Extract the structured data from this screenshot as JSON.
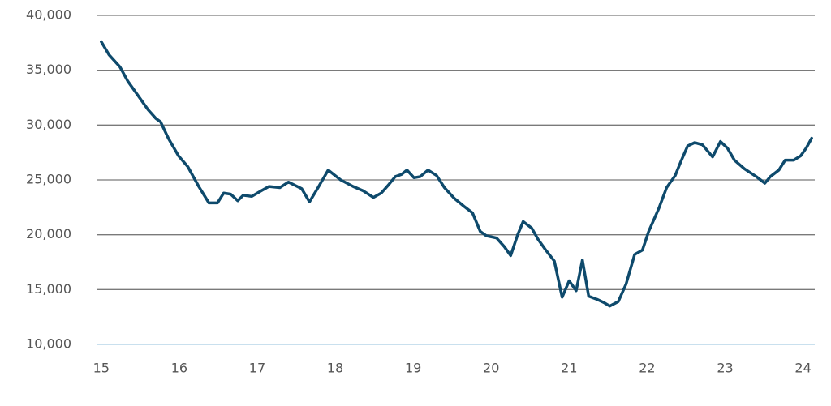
{
  "chart_data": {
    "type": "line",
    "x": [
      15.0,
      15.1,
      15.24,
      15.34,
      15.47,
      15.6,
      15.7,
      15.76,
      15.86,
      15.99,
      16.11,
      16.25,
      16.38,
      16.49,
      16.57,
      16.66,
      16.75,
      16.82,
      16.93,
      17.05,
      17.15,
      17.29,
      17.4,
      17.57,
      17.67,
      17.78,
      17.91,
      18.07,
      18.23,
      18.36,
      18.49,
      18.59,
      18.69,
      18.77,
      18.85,
      18.92,
      19.01,
      19.09,
      19.19,
      19.3,
      19.4,
      19.53,
      19.65,
      19.76,
      19.86,
      19.94,
      20.07,
      20.17,
      20.25,
      20.34,
      20.41,
      20.52,
      20.6,
      20.69,
      20.81,
      20.91,
      21.0,
      21.09,
      21.17,
      21.25,
      21.36,
      21.45,
      21.52,
      21.63,
      21.73,
      21.84,
      21.94,
      22.02,
      22.15,
      22.25,
      22.36,
      22.44,
      22.52,
      22.61,
      22.71,
      22.84,
      22.94,
      23.03,
      23.12,
      23.25,
      23.4,
      23.51,
      23.58,
      23.69,
      23.77,
      23.88,
      23.97,
      24.04,
      24.11
    ],
    "series": [
      {
        "color": "#0e4a6c",
        "values": [
          37600,
          36400,
          35300,
          34000,
          32700,
          31400,
          30600,
          30300,
          28800,
          27200,
          26200,
          24400,
          22900,
          22900,
          23800,
          23700,
          23100,
          23600,
          23500,
          24000,
          24400,
          24300,
          24800,
          24200,
          23000,
          24300,
          25900,
          25000,
          24400,
          24000,
          23400,
          23800,
          24600,
          25300,
          25500,
          25900,
          25200,
          25300,
          25900,
          25400,
          24300,
          23300,
          22600,
          22000,
          20300,
          19900,
          19700,
          18900,
          18100,
          20000,
          21200,
          20600,
          19600,
          18700,
          17600,
          14300,
          15800,
          14900,
          17700,
          14400,
          14100,
          13800,
          13500,
          13900,
          15500,
          18200,
          18600,
          20300,
          22400,
          24300,
          25400,
          26800,
          28100,
          28400,
          28200,
          27100,
          28500,
          27900,
          26800,
          26000,
          25300,
          24700,
          25300,
          25900,
          26800,
          26800,
          27200,
          27900,
          28800
        ]
      }
    ],
    "xlim": [
      14.95,
      24.15
    ],
    "xticks": [
      15,
      16,
      17,
      18,
      19,
      20,
      21,
      22,
      23,
      24
    ],
    "ylim": [
      10000,
      40000
    ],
    "yticks": [
      {
        "value": 10000,
        "label": "10,000"
      },
      {
        "value": 15000,
        "label": "15,000"
      },
      {
        "value": 20000,
        "label": "20,000"
      },
      {
        "value": 25000,
        "label": "25,000"
      },
      {
        "value": 30000,
        "label": "30,000"
      },
      {
        "value": 35000,
        "label": "35,000"
      },
      {
        "value": 40000,
        "label": "40,000"
      }
    ],
    "grid": true
  }
}
